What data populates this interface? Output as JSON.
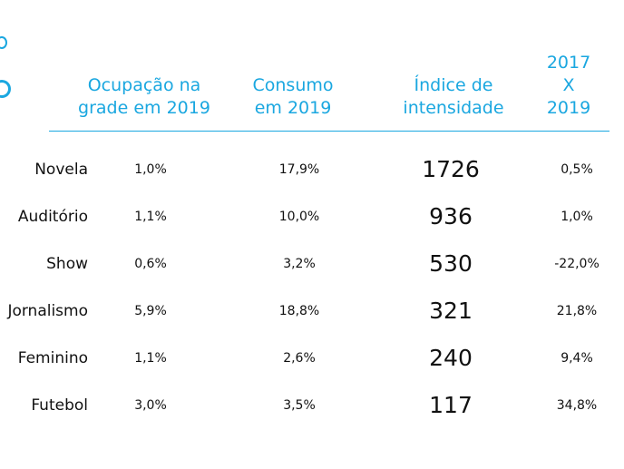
{
  "headers": {
    "occupation": "Ocupação na\ngrade em 2019",
    "consumption": "Consumo\nem 2019",
    "intensity": "Índice de\nintensidade",
    "change": "2017\nX\n2019"
  },
  "rows": [
    {
      "genre": "Novela",
      "occupation": "1,0%",
      "consumption": "17,9%",
      "intensity": "1726",
      "change": "0,5%"
    },
    {
      "genre": "Auditório",
      "occupation": "1,1%",
      "consumption": "10,0%",
      "intensity": "936",
      "change": "1,0%"
    },
    {
      "genre": "Show",
      "occupation": "0,6%",
      "consumption": "3,2%",
      "intensity": "530",
      "change": "-22,0%"
    },
    {
      "genre": "Jornalismo",
      "occupation": "5,9%",
      "consumption": "18,8%",
      "intensity": "321",
      "change": "21,8%"
    },
    {
      "genre": "Feminino",
      "occupation": "1,1%",
      "consumption": "2,6%",
      "intensity": "240",
      "change": "9,4%"
    },
    {
      "genre": "Futebol",
      "occupation": "3,0%",
      "consumption": "3,5%",
      "intensity": "117",
      "change": "34,8%"
    }
  ],
  "colors": {
    "accent": "#1aa7e0",
    "text": "#111111"
  }
}
